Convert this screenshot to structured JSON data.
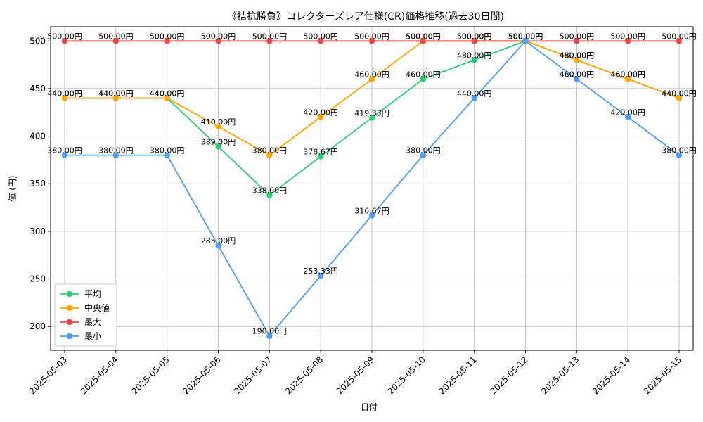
{
  "chart_data": {
    "type": "line",
    "title": "《拮抗勝負》コレクターズレア仕様(CR)価格推移(過去30日間)",
    "xlabel": "日付",
    "ylabel": "値 (円)",
    "ylim": [
      175,
      515
    ],
    "yticks": [
      200,
      250,
      300,
      350,
      400,
      450,
      500
    ],
    "grid": true,
    "legend_position": "lower-left",
    "categories": [
      "2025-05-03",
      "2025-05-04",
      "2025-05-05",
      "2025-05-06",
      "2025-05-07",
      "2025-05-08",
      "2025-05-09",
      "2025-05-10",
      "2025-05-11",
      "2025-05-12",
      "2025-05-13",
      "2025-05-14",
      "2025-05-15"
    ],
    "value_suffix": "円",
    "series": [
      {
        "name": "平均",
        "color": "#2ecc71",
        "values": [
          440,
          440,
          440,
          389,
          338,
          378.67,
          419.33,
          460,
          480,
          500,
          480,
          460,
          440
        ]
      },
      {
        "name": "中央値",
        "color": "#ffa500",
        "values": [
          440,
          440,
          440,
          410,
          380,
          420,
          460,
          500,
          500,
          500,
          480,
          460,
          440
        ]
      },
      {
        "name": "最大",
        "color": "#ef4444",
        "values": [
          500,
          500,
          500,
          500,
          500,
          500,
          500,
          500,
          500,
          500,
          500,
          500,
          500
        ]
      },
      {
        "name": "最小",
        "color": "#4f9cf0",
        "values": [
          380,
          380,
          380,
          285,
          190,
          253.33,
          316.67,
          380,
          440,
          500,
          460,
          420,
          380
        ]
      }
    ]
  }
}
